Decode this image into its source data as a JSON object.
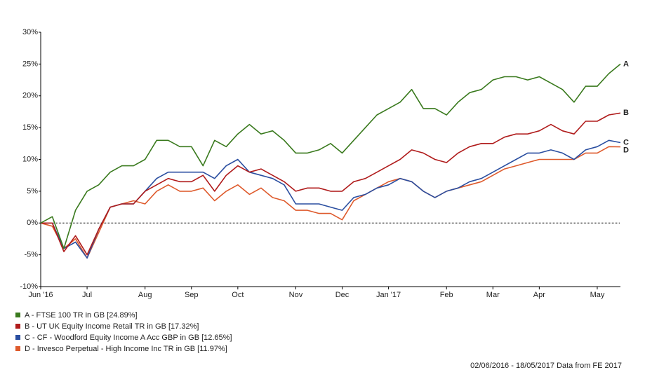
{
  "chart_data": {
    "type": "line",
    "categories": [
      "Jun '16",
      null,
      null,
      null,
      "Jul",
      null,
      null,
      null,
      null,
      "Aug",
      null,
      null,
      null,
      "Sep",
      null,
      null,
      null,
      "Oct",
      null,
      null,
      null,
      null,
      "Nov",
      null,
      null,
      null,
      "Dec",
      null,
      null,
      null,
      "Jan '17",
      null,
      null,
      null,
      null,
      "Feb",
      null,
      null,
      null,
      "Mar",
      null,
      null,
      null,
      "Apr",
      null,
      null,
      null,
      null,
      "May",
      null,
      null
    ],
    "series": [
      {
        "name": "A - FTSE 100 TR in GB [24.89%]",
        "end_label": "A",
        "color": "#3a7a1e",
        "values": [
          0,
          1,
          -4,
          2,
          5,
          6,
          8,
          9,
          9,
          10,
          13,
          13,
          12,
          12,
          9,
          13,
          12,
          14,
          15.5,
          14,
          14.5,
          13,
          11,
          11,
          11.5,
          12.5,
          11,
          13,
          15,
          17,
          18,
          19,
          21,
          18,
          18,
          17,
          19,
          20.5,
          21,
          22.5,
          23,
          23,
          22.5,
          23,
          22,
          21,
          19,
          21.5,
          21.5,
          23.5,
          25
        ]
      },
      {
        "name": "B - UT UK Equity Income Retail TR in GB [17.32%]",
        "end_label": "B",
        "color": "#b01c1c",
        "values": [
          0,
          0,
          -4.5,
          -2,
          -5,
          -1,
          2.5,
          3,
          3,
          5,
          6,
          7,
          6.5,
          6.5,
          7.5,
          5,
          7.5,
          9,
          8,
          8.5,
          7.5,
          6.5,
          5,
          5.5,
          5.5,
          5,
          5,
          6.5,
          7,
          8,
          9,
          10,
          11.5,
          11,
          10,
          9.5,
          11,
          12,
          12.5,
          12.5,
          13.5,
          14,
          14,
          14.5,
          15.5,
          14.5,
          14,
          16,
          16,
          17,
          17.3
        ]
      },
      {
        "name": "C - CF - Woodford Equity Income A Acc GBP in GB [12.65%]",
        "end_label": "C",
        "color": "#2a4ea0",
        "values": [
          0,
          0,
          -4,
          -3,
          -5.5,
          -1,
          2.5,
          3,
          3,
          5,
          7,
          8,
          8,
          8,
          8,
          7,
          9,
          10,
          8,
          7.5,
          7,
          6,
          3,
          3,
          3,
          2.5,
          2,
          4,
          4.5,
          5.5,
          6,
          7,
          6.5,
          5,
          4,
          5,
          5.5,
          6.5,
          7,
          8,
          9,
          10,
          11,
          11,
          11.5,
          11,
          10,
          11.5,
          12,
          13,
          12.65
        ]
      },
      {
        "name": "D - Invesco Perpetual - High Income Inc TR in GB [11.97%]",
        "end_label": "D",
        "color": "#de5a2c",
        "values": [
          0,
          -0.5,
          -4,
          -2.5,
          -5.5,
          -1.5,
          2.5,
          3,
          3.5,
          3,
          5,
          6,
          5,
          5,
          5.5,
          3.5,
          5,
          6,
          4.5,
          5.5,
          4,
          3.5,
          2,
          2,
          1.5,
          1.5,
          0.5,
          3.5,
          4.5,
          5.5,
          6.5,
          7,
          6.5,
          5,
          4,
          5,
          5.5,
          6,
          6.5,
          7.5,
          8.5,
          9,
          9.5,
          10,
          10,
          10,
          10,
          11,
          11,
          12,
          11.97
        ]
      }
    ],
    "ylim": [
      -10,
      30
    ],
    "yticks": [
      {
        "value": -10,
        "label": "-10%"
      },
      {
        "value": -5,
        "label": "-5%"
      },
      {
        "value": 0,
        "label": "0%"
      },
      {
        "value": 5,
        "label": "5%"
      },
      {
        "value": 10,
        "label": "10%"
      },
      {
        "value": 15,
        "label": "15%"
      },
      {
        "value": 20,
        "label": "20%"
      },
      {
        "value": 25,
        "label": "25%"
      },
      {
        "value": 30,
        "label": "30%"
      }
    ],
    "grid": false,
    "footnote": "02/06/2016 - 18/05/2017 Data from FE 2017"
  }
}
